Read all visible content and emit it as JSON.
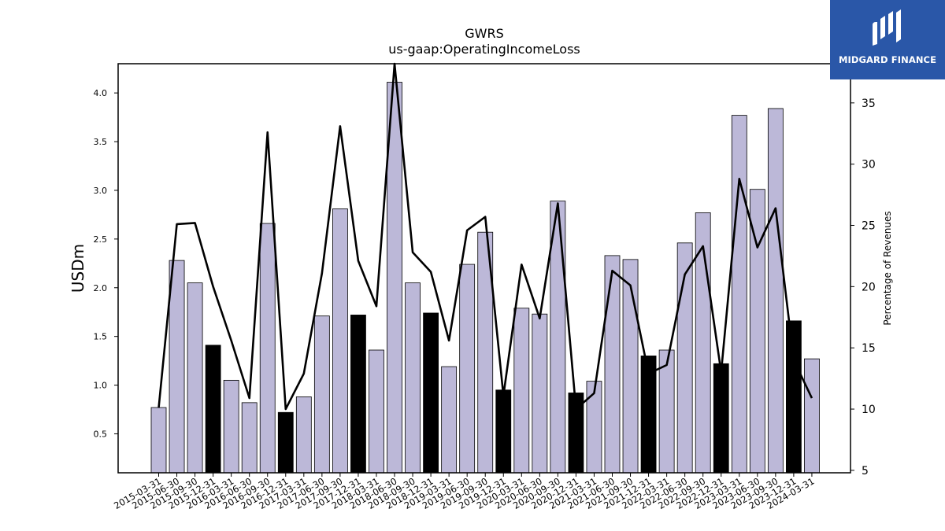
{
  "chart_data": {
    "type": "bar+line",
    "title": "GWRS",
    "subtitle": "us-gaap:OperatingIncomeLoss",
    "ylabel_left": "USDm",
    "ylabel_right": "Percentage of Revenues",
    "ylim_left": [
      0.1,
      4.3
    ],
    "ylim_right": [
      4.8,
      38.2
    ],
    "yticks_left": [
      "0.5",
      "1.0",
      "1.5",
      "2.0",
      "2.5",
      "3.0",
      "3.5",
      "4.0"
    ],
    "yticks_right": [
      "5",
      "10",
      "15",
      "20",
      "25",
      "30",
      "35"
    ],
    "categories": [
      "2015-03-31",
      "2015-06-30",
      "2015-09-30",
      "2015-12-31",
      "2016-03-31",
      "2016-06-30",
      "2016-09-30",
      "2016-12-31",
      "2017-03-31",
      "2017-06-30",
      "2017-09-30",
      "2017-12-31",
      "2018-03-31",
      "2018-06-30",
      "2018-09-30",
      "2018-12-31",
      "2019-03-31",
      "2019-06-30",
      "2019-09-30",
      "2019-12-31",
      "2020-03-31",
      "2020-06-30",
      "2020-09-30",
      "2020-12-31",
      "2021-03-31",
      "2021-06-30",
      "2021-09-30",
      "2021-12-31",
      "2022-03-31",
      "2022-06-30",
      "2022-09-30",
      "2022-12-31",
      "2023-03-31",
      "2023-06-30",
      "2023-09-30",
      "2023-12-31",
      "2024-03-31"
    ],
    "bar_values": [
      0.77,
      2.28,
      2.05,
      1.41,
      1.05,
      0.82,
      2.66,
      0.72,
      0.88,
      1.71,
      2.81,
      1.72,
      1.36,
      4.11,
      2.05,
      1.74,
      1.19,
      2.24,
      2.57,
      0.95,
      1.79,
      1.73,
      2.89,
      0.92,
      1.04,
      2.33,
      2.29,
      1.3,
      1.36,
      2.46,
      2.77,
      1.22,
      3.77,
      3.01,
      3.84,
      1.66,
      1.27
    ],
    "highlighted_indices": [
      3,
      7,
      11,
      15,
      19,
      23,
      27,
      31,
      35
    ],
    "line_values": [
      10.1,
      25.1,
      25.2,
      20.0,
      15.6,
      10.9,
      32.6,
      10.0,
      12.9,
      21.1,
      33.1,
      22.1,
      18.4,
      38.2,
      22.8,
      21.2,
      15.6,
      24.6,
      25.7,
      11.1,
      21.8,
      17.4,
      26.8,
      10.0,
      11.3,
      21.3,
      20.1,
      12.9,
      13.6,
      21.0,
      23.3,
      13.0,
      28.8,
      23.2,
      26.4,
      14.0,
      10.9
    ],
    "colors": {
      "bar": "#bcb8d8",
      "bar_highlight": "#000000",
      "line": "#000000",
      "logo_bg": "#2a57a8"
    }
  },
  "logo": {
    "text": "MIDGARD FINANCE",
    "icon": "midgard-logo-icon"
  }
}
